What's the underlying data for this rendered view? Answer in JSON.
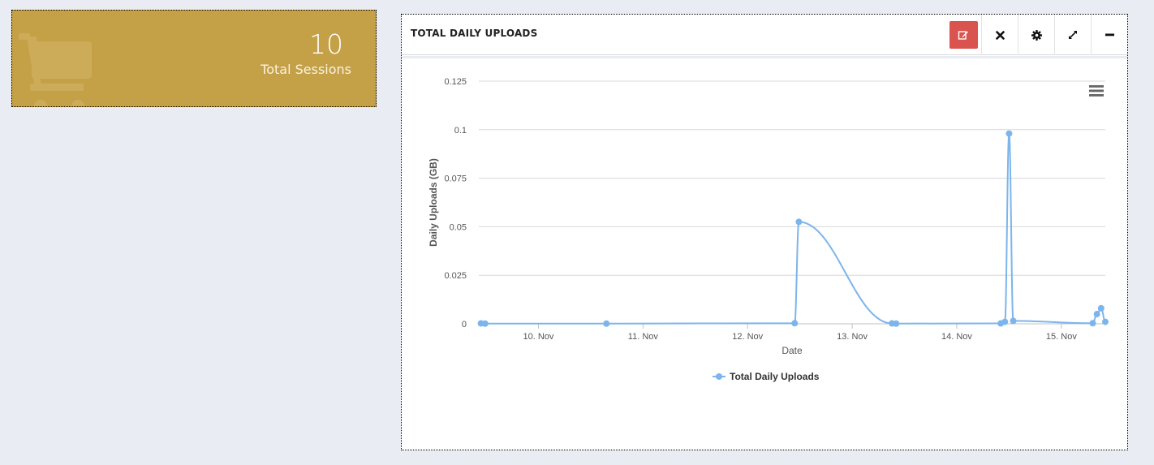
{
  "stat_tile": {
    "value": "10",
    "label": "Total Sessions",
    "icon": "shopping-cart-icon",
    "background": "#c4a047"
  },
  "widget": {
    "title": "TOTAL DAILY UPLOADS",
    "toolbar": {
      "edit_icon": "edit-icon",
      "close_icon": "close-icon",
      "settings_icon": "gear-icon",
      "expand_icon": "expand-icon",
      "minimize_icon": "minimize-icon",
      "edit_color": "#d9534f"
    }
  },
  "chart_data": {
    "type": "line",
    "title": "",
    "xlabel": "Date",
    "ylabel": "Daily Uploads (GB)",
    "ylim": [
      0,
      0.125
    ],
    "yticks": [
      "0",
      "0.025",
      "0.05",
      "0.075",
      "0.1",
      "0.125"
    ],
    "xticks": [
      "10. Nov",
      "11. Nov",
      "12. Nov",
      "13. Nov",
      "14. Nov",
      "15. Nov"
    ],
    "xlim": [
      9.43,
      15.42
    ],
    "grid": true,
    "legend": "bottom-center",
    "series": [
      {
        "name": "Total Daily Uploads",
        "color": "#7cb5ec",
        "points": [
          [
            9.45,
            0.0002
          ],
          [
            9.49,
            0.0001
          ],
          [
            10.65,
            0.0001
          ],
          [
            12.45,
            0.0003
          ],
          [
            12.49,
            0.0525
          ],
          [
            13.38,
            0.0002
          ],
          [
            13.42,
            0.0001
          ],
          [
            14.42,
            0.0002
          ],
          [
            14.46,
            0.001
          ],
          [
            14.5,
            0.098
          ],
          [
            14.54,
            0.0015
          ],
          [
            15.3,
            0.0003
          ],
          [
            15.34,
            0.005
          ],
          [
            15.38,
            0.008
          ],
          [
            15.42,
            0.001
          ]
        ]
      }
    ]
  }
}
